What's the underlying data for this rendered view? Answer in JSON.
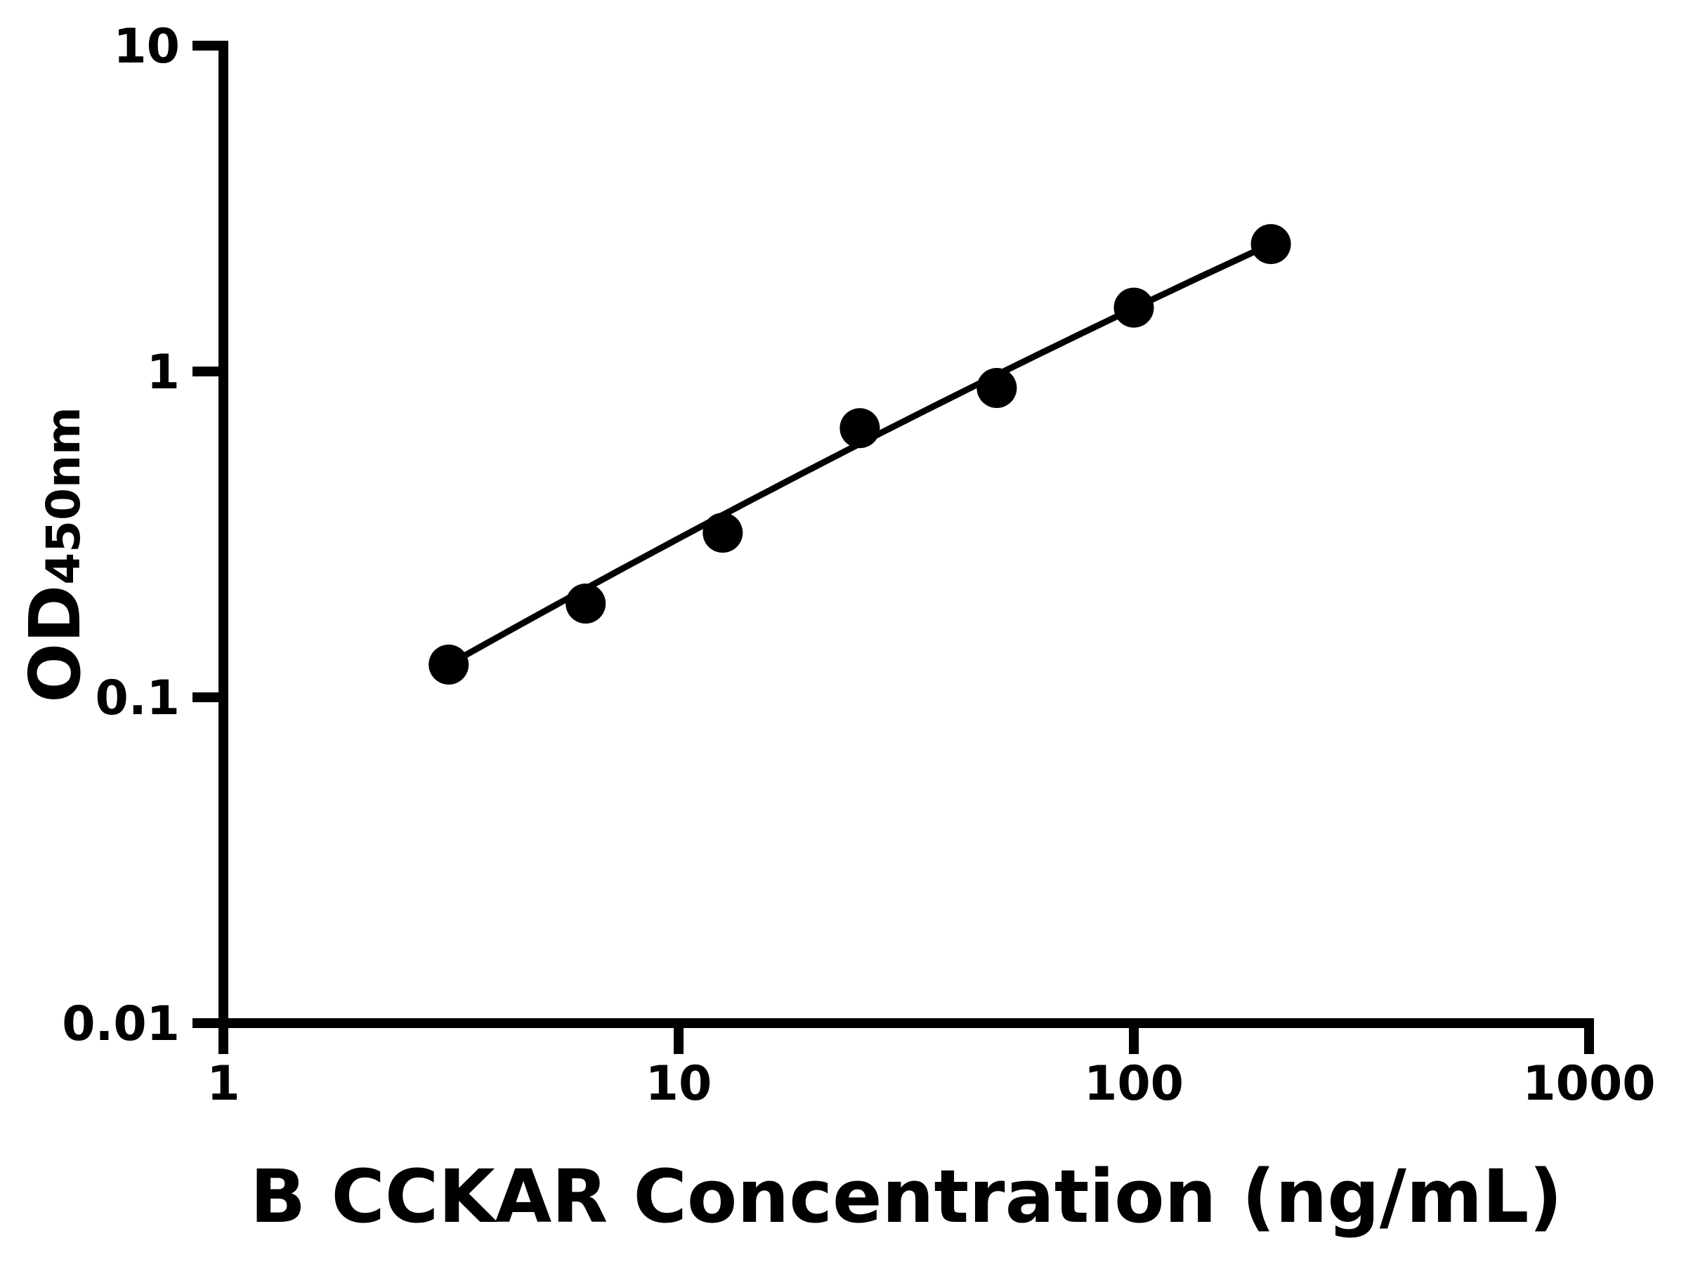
{
  "figure": {
    "background": "#ffffff",
    "ink_color": "#000000"
  },
  "chart_data": {
    "type": "scatter",
    "title": "",
    "xlabel": "B CCKAR Concentration (ng/mL)",
    "ylabel_main": "OD",
    "ylabel_sub": "450nm",
    "x_scale": "log10",
    "y_scale": "log10",
    "xlim": [
      1,
      1000
    ],
    "ylim": [
      0.01,
      10
    ],
    "grid": false,
    "legend": false,
    "x_tick_values": [
      1,
      10,
      100,
      1000
    ],
    "x_tick_labels": [
      "1",
      "10",
      "100",
      "1000"
    ],
    "y_tick_values": [
      10,
      1,
      0.1,
      0.01
    ],
    "y_tick_labels": [
      "10",
      "1",
      "0.1",
      "0.01"
    ],
    "series": [
      {
        "marker": "filled-circle",
        "color": "#000000",
        "x": [
          3.125,
          6.25,
          12.5,
          25,
          50,
          100,
          200
        ],
        "y": [
          0.126,
          0.194,
          0.32,
          0.67,
          0.89,
          1.57,
          2.46
        ]
      }
    ],
    "fit_line": {
      "color": "#000000",
      "anchors_x": [
        3.125,
        25,
        200
      ],
      "anchors_y": [
        0.126,
        0.6,
        2.46
      ]
    }
  }
}
